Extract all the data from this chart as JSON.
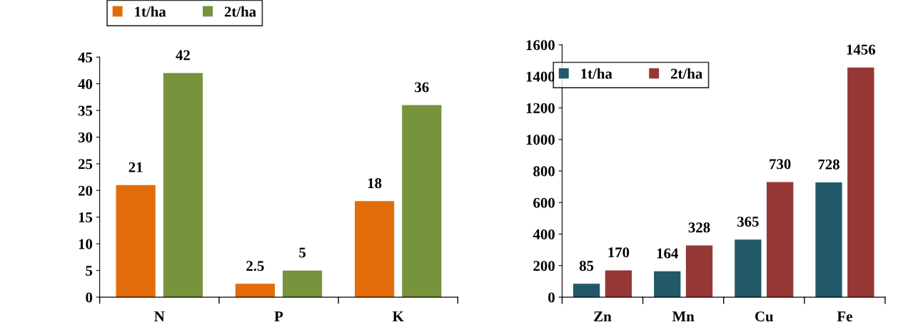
{
  "chart_data": [
    {
      "type": "bar",
      "categories": [
        "N",
        "P",
        "K"
      ],
      "series": [
        {
          "name": "1t/ha",
          "color": "#e36c0a",
          "values": [
            21,
            2.5,
            18
          ]
        },
        {
          "name": "2t/ha",
          "color": "#77933c",
          "values": [
            42,
            5,
            36
          ]
        }
      ],
      "ylim": [
        0,
        45
      ],
      "yticks": [
        0,
        5,
        10,
        15,
        20,
        25,
        30,
        35,
        40,
        45
      ],
      "data_labels": true,
      "grid": false,
      "legend": "top left"
    },
    {
      "type": "bar",
      "categories": [
        "Zn",
        "Mn",
        "Cu",
        "Fe"
      ],
      "series": [
        {
          "name": "1t/ha",
          "color": "#215968",
          "values": [
            85,
            164,
            365,
            728
          ]
        },
        {
          "name": "2t/ha",
          "color": "#953735",
          "values": [
            170,
            328,
            730,
            1456
          ]
        }
      ],
      "ylim": [
        0,
        1600
      ],
      "yticks": [
        0,
        200,
        400,
        600,
        800,
        1000,
        1200,
        1400,
        1600
      ],
      "data_labels": true,
      "grid": false,
      "legend": "top left"
    }
  ]
}
